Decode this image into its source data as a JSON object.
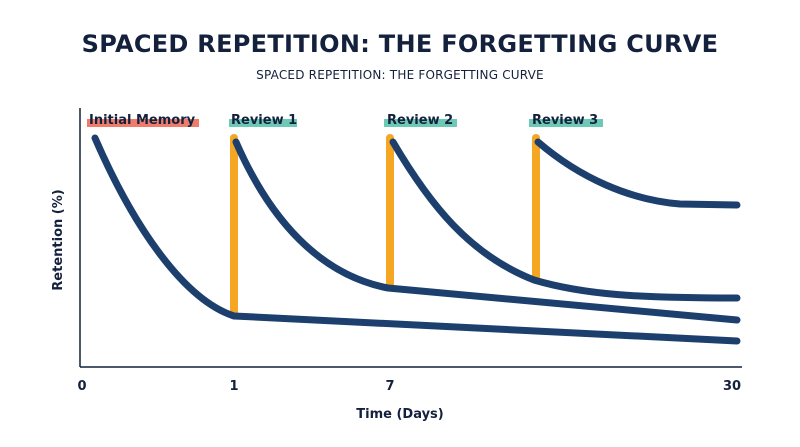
{
  "title": "SPACED REPETITION: THE FORGETTING CURVE",
  "subtitle": "SPACED REPETITION: THE FORGETTING CURVE",
  "colors": {
    "curve": "#1c3f6e",
    "review_bar": "#f5a623",
    "initial_highlight": "#ef7b6b",
    "review_highlight": "#6cc9b5",
    "axis": "#14213d"
  },
  "chart_data": {
    "type": "line",
    "title": "SPACED REPETITION: THE FORGETTING CURVE",
    "xlabel": "Time (Days)",
    "ylabel": "Retention (%)",
    "x_ticks": [
      "0",
      "1",
      "7",
      "30"
    ],
    "grid": false,
    "legend": "none",
    "events": [
      {
        "label": "Initial Memory",
        "highlight": "initial_highlight"
      },
      {
        "label": "Review 1",
        "highlight": "review_highlight"
      },
      {
        "label": "Review 2",
        "highlight": "review_highlight"
      },
      {
        "label": "Review 3",
        "highlight": "review_highlight"
      }
    ]
  }
}
